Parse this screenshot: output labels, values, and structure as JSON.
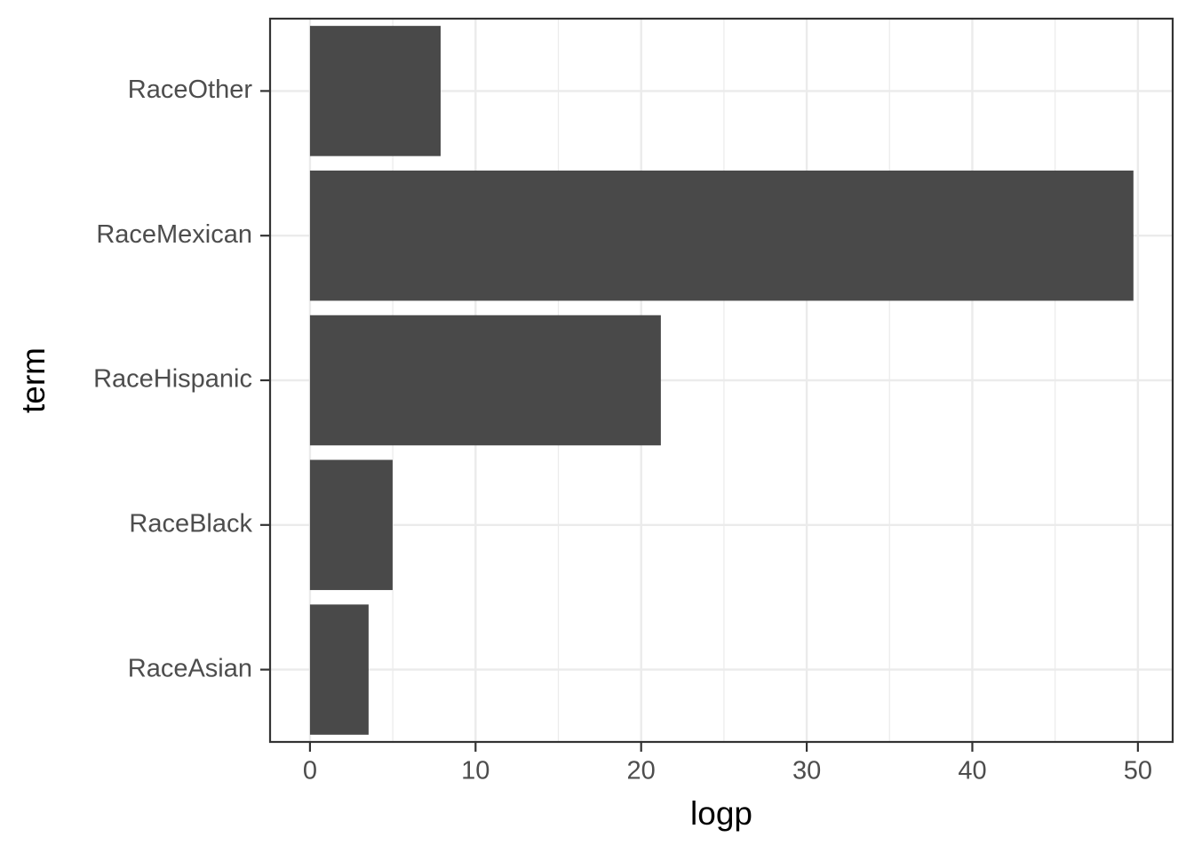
{
  "chart_data": {
    "type": "bar",
    "orientation": "horizontal",
    "x_label": "logp",
    "y_label": "term",
    "categories": [
      "RaceAsian",
      "RaceBlack",
      "RaceHispanic",
      "RaceMexican",
      "RaceOther"
    ],
    "values": [
      3.54,
      4.99,
      21.19,
      49.73,
      7.89
    ],
    "color": "#494949",
    "xlim": [
      -2.41,
      52.1
    ],
    "xticks": [
      0,
      10,
      20,
      30,
      40,
      50
    ],
    "grid": true
  }
}
